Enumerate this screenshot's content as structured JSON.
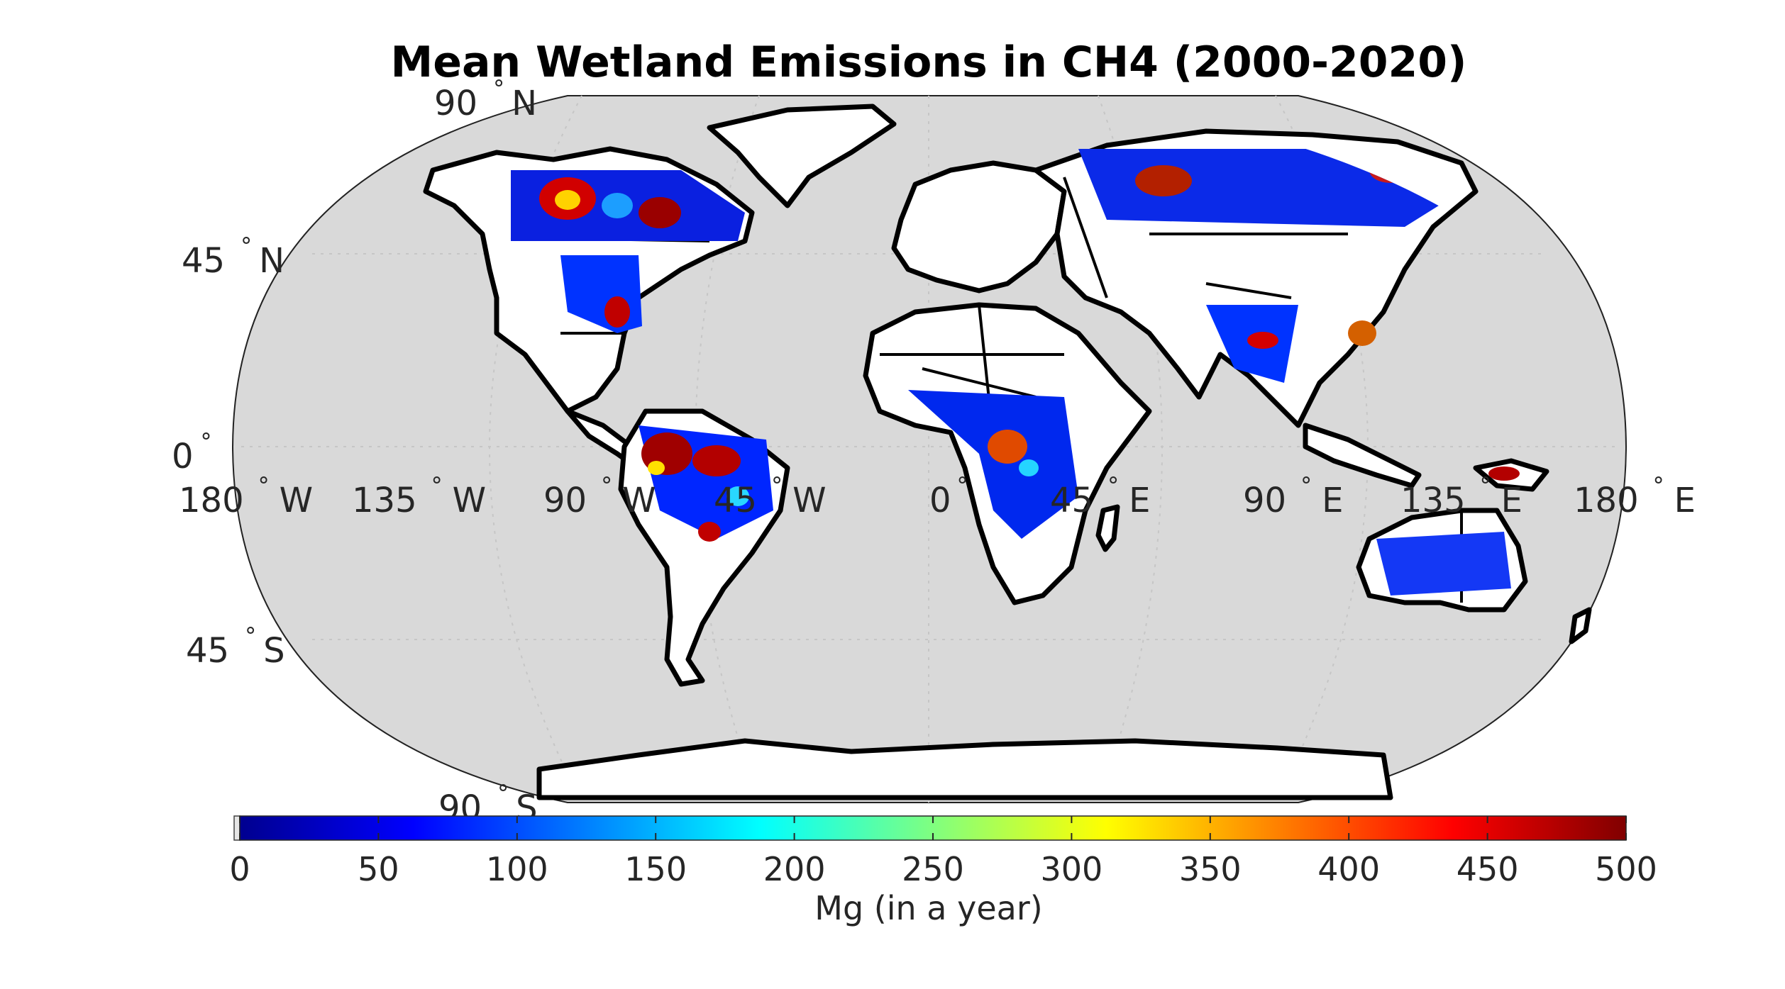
{
  "title": "Mean Wetland Emissions in CH4 (2000-2020)",
  "latitude_labels": [
    {
      "deg": "90",
      "hemi": "N",
      "lat": 90
    },
    {
      "deg": "45",
      "hemi": "N",
      "lat": 45
    },
    {
      "deg": "0",
      "hemi": "",
      "lat": 0
    },
    {
      "deg": "45",
      "hemi": "S",
      "lat": -45
    },
    {
      "deg": "90",
      "hemi": "S",
      "lat": -90
    }
  ],
  "longitude_labels": [
    {
      "deg": "180",
      "hemi": "W",
      "lon": -180
    },
    {
      "deg": "135",
      "hemi": "W",
      "lon": -135
    },
    {
      "deg": "90",
      "hemi": "W",
      "lon": -90
    },
    {
      "deg": "45",
      "hemi": "W",
      "lon": -45
    },
    {
      "deg": "0",
      "hemi": "",
      "lon": 0
    },
    {
      "deg": "45",
      "hemi": "E",
      "lon": 45
    },
    {
      "deg": "90",
      "hemi": "E",
      "lon": 90
    },
    {
      "deg": "135",
      "hemi": "E",
      "lon": 135
    },
    {
      "deg": "180",
      "hemi": "E",
      "lon": 180
    }
  ],
  "colorbar": {
    "label": "Mg (in a year)",
    "min": 0,
    "max": 500,
    "ticks": [
      "0",
      "50",
      "100",
      "150",
      "200",
      "250",
      "300",
      "350",
      "400",
      "450",
      "500"
    ],
    "colormap": "jet"
  },
  "colors": {
    "ocean": "#d9d9d9",
    "land": "#ffffff",
    "coastline": "#000000"
  }
}
